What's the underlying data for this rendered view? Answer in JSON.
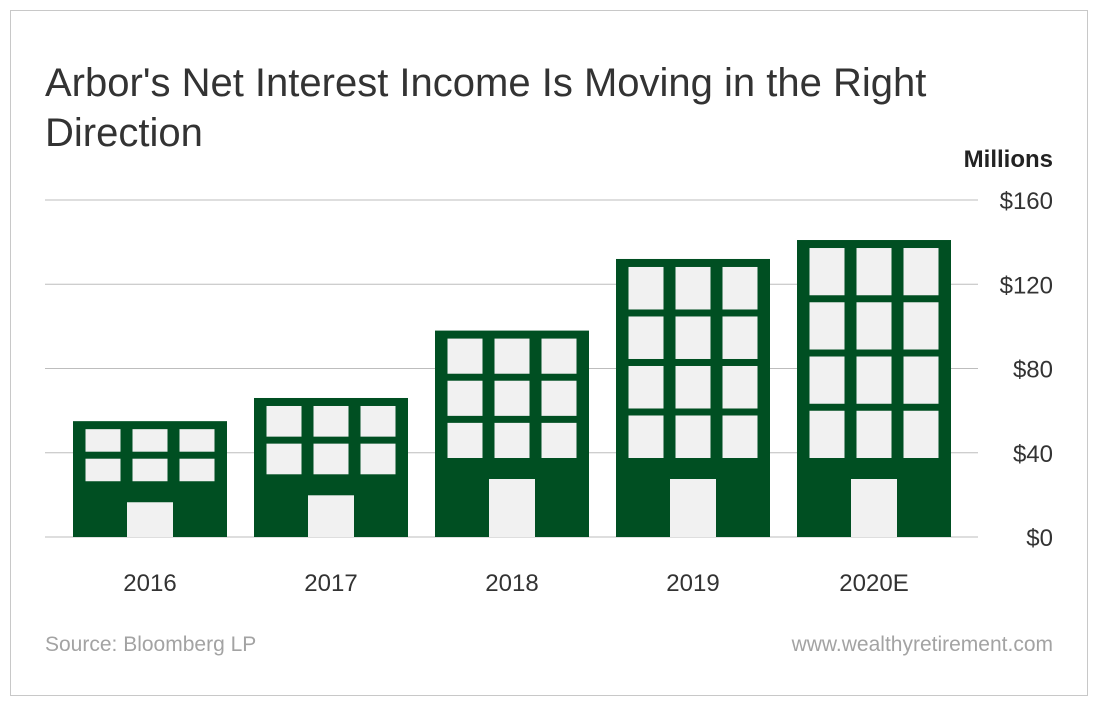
{
  "colors": {
    "building": "#004f22",
    "window": "#f1f1f1",
    "grid": "#bdbdbd",
    "text": "#333333",
    "footer_text": "#a3a3a3"
  },
  "chart_data": {
    "type": "bar",
    "title": "Arbor's Net Interest Income Is Moving in the Right Direction",
    "unit_label": "Millions",
    "categories": [
      "2016",
      "2017",
      "2018",
      "2019",
      "2020E"
    ],
    "values": [
      55,
      66,
      98,
      132,
      141
    ],
    "y_ticks": [
      "$0",
      "$40",
      "$80",
      "$120",
      "$160"
    ],
    "ylim": [
      0,
      160
    ],
    "y_axis_side": "right",
    "grid": true,
    "bar_style": "buildings with windows",
    "legend": "none"
  },
  "footer": {
    "source": "Source: Bloomberg LP",
    "website": "www.wealthyretirement.com"
  }
}
